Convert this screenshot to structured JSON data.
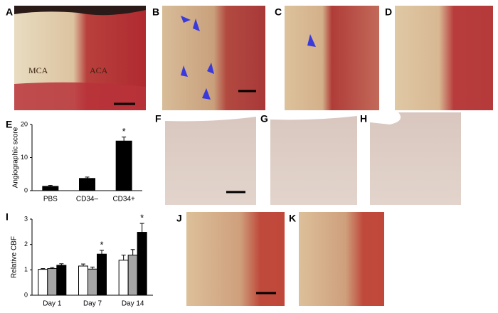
{
  "panels": [
    "A",
    "B",
    "C",
    "D",
    "E",
    "F",
    "G",
    "H",
    "I",
    "J",
    "K"
  ],
  "panel_a_labels": [
    "MCA",
    "ACA"
  ],
  "chart_data": [
    {
      "type": "bar",
      "ylabel": "Angiographic score",
      "categories": [
        "PBS",
        "CD34–",
        "CD34+"
      ],
      "values": [
        1.3,
        3.7,
        15
      ],
      "errors": [
        0.3,
        0.4,
        1.2
      ],
      "color": "#000000",
      "ylim": [
        0,
        20
      ],
      "yticks": [
        0,
        10,
        20
      ],
      "significance": [
        null,
        null,
        "*"
      ]
    },
    {
      "type": "bar",
      "ylabel": "Relative CBF",
      "categories": [
        "Day 1",
        "Day 7",
        "Day 14"
      ],
      "series": [
        {
          "color": "#ffffff",
          "values": [
            1.02,
            1.15,
            1.38
          ],
          "errors": [
            0.03,
            0.08,
            0.2
          ]
        },
        {
          "color": "#a6a6a6",
          "values": [
            1.05,
            1.03,
            1.58
          ],
          "errors": [
            0.04,
            0.08,
            0.22
          ]
        },
        {
          "color": "#000000",
          "values": [
            1.18,
            1.62,
            2.48
          ],
          "errors": [
            0.06,
            0.15,
            0.35
          ]
        }
      ],
      "ylim": [
        0,
        3
      ],
      "yticks": [
        0,
        1,
        2,
        3
      ],
      "significance": [
        null,
        "*",
        "*"
      ]
    }
  ]
}
